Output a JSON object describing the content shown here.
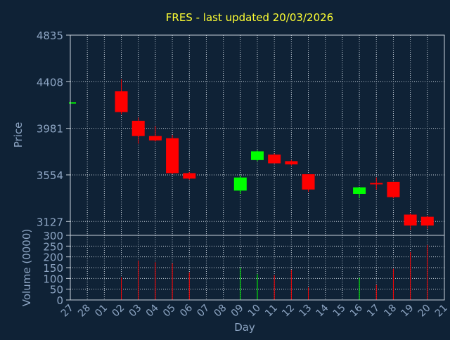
{
  "colors": {
    "background": "#0f2236",
    "title": "#ffff33",
    "axis_text": "#8ea6c4",
    "grid": "#c8d2dc",
    "frame": "#c8d2dc",
    "up": "#00ff00",
    "down": "#ff0000"
  },
  "chart_data": {
    "type": "candlestick",
    "title": "FRES - last updated 20/03/2026",
    "ylabel_price": "Price",
    "ylabel_volume": "Volume (0000)",
    "xlabel": "Day",
    "price_ylim": [
      3000,
      4835
    ],
    "price_ticks": [
      "4835",
      "4408",
      "3981",
      "3554",
      "3127"
    ],
    "volume_ylim": [
      0,
      300
    ],
    "volume_ticks": [
      "300",
      "250",
      "200",
      "150",
      "100",
      "50",
      "0"
    ],
    "x_ticks": [
      "27",
      "28",
      "01",
      "02",
      "03",
      "04",
      "05",
      "06",
      "07",
      "08",
      "09",
      "10",
      "11",
      "12",
      "13",
      "14",
      "15",
      "16",
      "17",
      "18",
      "19",
      "20",
      "21"
    ],
    "grid": true,
    "candles": [
      {
        "day": "27",
        "open": 4220,
        "high": 4220,
        "low": 4220,
        "close": 4220,
        "volume": 0
      },
      {
        "day": "02",
        "open": 4320,
        "high": 4430,
        "low": 4110,
        "close": 4130,
        "volume": 105
      },
      {
        "day": "03",
        "open": 4050,
        "high": 4080,
        "low": 3840,
        "close": 3910,
        "volume": 183
      },
      {
        "day": "04",
        "open": 3910,
        "high": 4000,
        "low": 3860,
        "close": 3870,
        "volume": 175
      },
      {
        "day": "05",
        "open": 3890,
        "high": 3920,
        "low": 3560,
        "close": 3570,
        "volume": 170
      },
      {
        "day": "06",
        "open": 3570,
        "high": 3580,
        "low": 3510,
        "close": 3520,
        "volume": 128
      },
      {
        "day": "09",
        "open": 3410,
        "high": 3550,
        "low": 3380,
        "close": 3530,
        "volume": 150
      },
      {
        "day": "10",
        "open": 3690,
        "high": 3780,
        "low": 3680,
        "close": 3770,
        "volume": 120
      },
      {
        "day": "11",
        "open": 3740,
        "high": 3750,
        "low": 3660,
        "close": 3660,
        "volume": 115
      },
      {
        "day": "12",
        "open": 3680,
        "high": 3690,
        "low": 3640,
        "close": 3650,
        "volume": 140
      },
      {
        "day": "13",
        "open": 3560,
        "high": 3560,
        "low": 3400,
        "close": 3420,
        "volume": 58
      },
      {
        "day": "16",
        "open": 3380,
        "high": 3440,
        "low": 3340,
        "close": 3440,
        "volume": 103
      },
      {
        "day": "17",
        "open": 3480,
        "high": 3530,
        "low": 3420,
        "close": 3470,
        "volume": 70
      },
      {
        "day": "18",
        "open": 3490,
        "high": 3490,
        "low": 3340,
        "close": 3350,
        "volume": 145
      },
      {
        "day": "19",
        "open": 3190,
        "high": 3200,
        "low": 3050,
        "close": 3090,
        "volume": 222
      },
      {
        "day": "20",
        "open": 3170,
        "high": 3180,
        "low": 3060,
        "close": 3090,
        "volume": 255
      }
    ]
  }
}
